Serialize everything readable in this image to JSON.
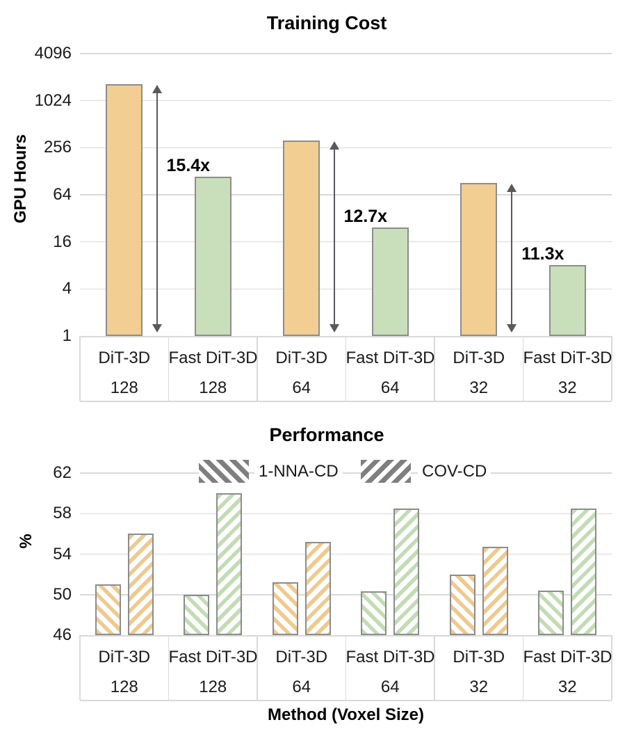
{
  "colors": {
    "dit_bar": "#F2CE92",
    "fastdit_bar": "#C9DFBB",
    "bar_border": "#8C8C8C",
    "hatch_dit": "#EFC98E",
    "hatch_fastdit": "#C2DCB4",
    "legend_hatch": "#7F7F7F",
    "gridline": "#D9D9D9",
    "table_border": "#D9D9D9",
    "arrow": "#595959"
  },
  "chart_data": [
    {
      "type": "bar",
      "title": "Training Cost",
      "ylabel": "GPU Hours",
      "yscale": "log4",
      "yticks": [
        1,
        4,
        16,
        64,
        256,
        1024,
        4096
      ],
      "grid": true,
      "categories": [
        {
          "method": "DiT-3D",
          "voxel": "128"
        },
        {
          "method": "Fast DiT-3D",
          "voxel": "128"
        },
        {
          "method": "DiT-3D",
          "voxel": "64"
        },
        {
          "method": "Fast DiT-3D",
          "voxel": "64"
        },
        {
          "method": "DiT-3D",
          "voxel": "32"
        },
        {
          "method": "Fast DiT-3D",
          "voxel": "32"
        }
      ],
      "values": [
        1668,
        108,
        314,
        24.7,
        91,
        8.1
      ],
      "annotations": [
        {
          "label": "15.4x",
          "from_index": 0,
          "to_index": 1
        },
        {
          "label": "12.7x",
          "from_index": 2,
          "to_index": 3
        },
        {
          "label": "11.3x",
          "from_index": 4,
          "to_index": 5
        }
      ]
    },
    {
      "type": "bar",
      "title": "Performance",
      "ylabel": "%",
      "xlabel": "Method (Voxel Size)",
      "ylim": [
        46,
        62
      ],
      "yticks": [
        46,
        50,
        54,
        58,
        62
      ],
      "grid": true,
      "legend_position": "top",
      "categories": [
        {
          "method": "DiT-3D",
          "voxel": "128"
        },
        {
          "method": "Fast DiT-3D",
          "voxel": "128"
        },
        {
          "method": "DiT-3D",
          "voxel": "64"
        },
        {
          "method": "Fast DiT-3D",
          "voxel": "64"
        },
        {
          "method": "DiT-3D",
          "voxel": "32"
        },
        {
          "method": "Fast DiT-3D",
          "voxel": "32"
        }
      ],
      "series": [
        {
          "name": "1-NNA-CD",
          "hatch": "backslash",
          "values": [
            51.0,
            50.0,
            51.2,
            50.3,
            52.0,
            50.4
          ]
        },
        {
          "name": "COV-CD",
          "hatch": "slash",
          "values": [
            56.0,
            60.0,
            55.2,
            58.5,
            54.7,
            58.5
          ]
        }
      ]
    }
  ]
}
